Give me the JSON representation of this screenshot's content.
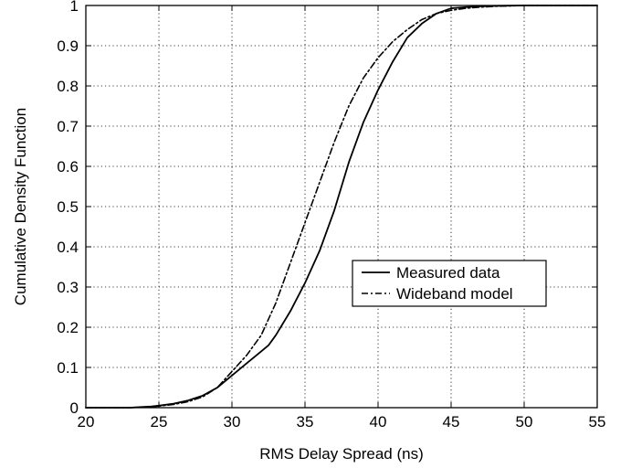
{
  "chart_data": {
    "type": "line",
    "title": "",
    "xlabel": "RMS Delay Spread (ns)",
    "ylabel": "Cumulative Density Function",
    "xlim": [
      20,
      55
    ],
    "ylim": [
      0,
      1
    ],
    "xticks": [
      20,
      25,
      30,
      35,
      40,
      45,
      50,
      55
    ],
    "yticks": [
      0,
      0.1,
      0.2,
      0.3,
      0.4,
      0.5,
      0.6,
      0.7,
      0.8,
      0.9,
      1
    ],
    "xtick_labels": [
      "20",
      "25",
      "30",
      "35",
      "40",
      "45",
      "50",
      "55"
    ],
    "ytick_labels": [
      "0",
      "0.1",
      "0.2",
      "0.3",
      "0.4",
      "0.5",
      "0.6",
      "0.7",
      "0.8",
      "0.9",
      "1"
    ],
    "grid": true,
    "legend_position": "center-right",
    "series": [
      {
        "name": "Measured data",
        "style": "solid",
        "color": "#000000",
        "x": [
          20,
          23,
          24.5,
          25,
          26,
          27,
          28,
          29,
          30,
          31,
          32,
          32.5,
          33,
          34,
          35,
          36,
          37,
          38,
          39,
          40,
          41,
          42,
          43,
          44,
          45,
          46,
          47,
          48,
          50,
          55
        ],
        "y": [
          0,
          0,
          0.003,
          0.005,
          0.01,
          0.018,
          0.03,
          0.05,
          0.08,
          0.11,
          0.14,
          0.155,
          0.18,
          0.24,
          0.31,
          0.39,
          0.49,
          0.61,
          0.71,
          0.79,
          0.86,
          0.92,
          0.955,
          0.98,
          0.993,
          0.996,
          0.998,
          0.999,
          1,
          1
        ]
      },
      {
        "name": "Wideband model",
        "style": "dashdot",
        "color": "#000000",
        "x": [
          20,
          23,
          24.5,
          25,
          26,
          27,
          28,
          29,
          30,
          31,
          32,
          33,
          34,
          35,
          36,
          37,
          38,
          39,
          40,
          41,
          42,
          43,
          44,
          45,
          46,
          47,
          48,
          50,
          55
        ],
        "y": [
          0,
          0,
          0.002,
          0.004,
          0.008,
          0.015,
          0.027,
          0.05,
          0.09,
          0.13,
          0.18,
          0.26,
          0.36,
          0.46,
          0.56,
          0.66,
          0.75,
          0.82,
          0.87,
          0.91,
          0.94,
          0.965,
          0.98,
          0.988,
          0.993,
          0.996,
          0.998,
          1,
          1
        ]
      }
    ]
  }
}
